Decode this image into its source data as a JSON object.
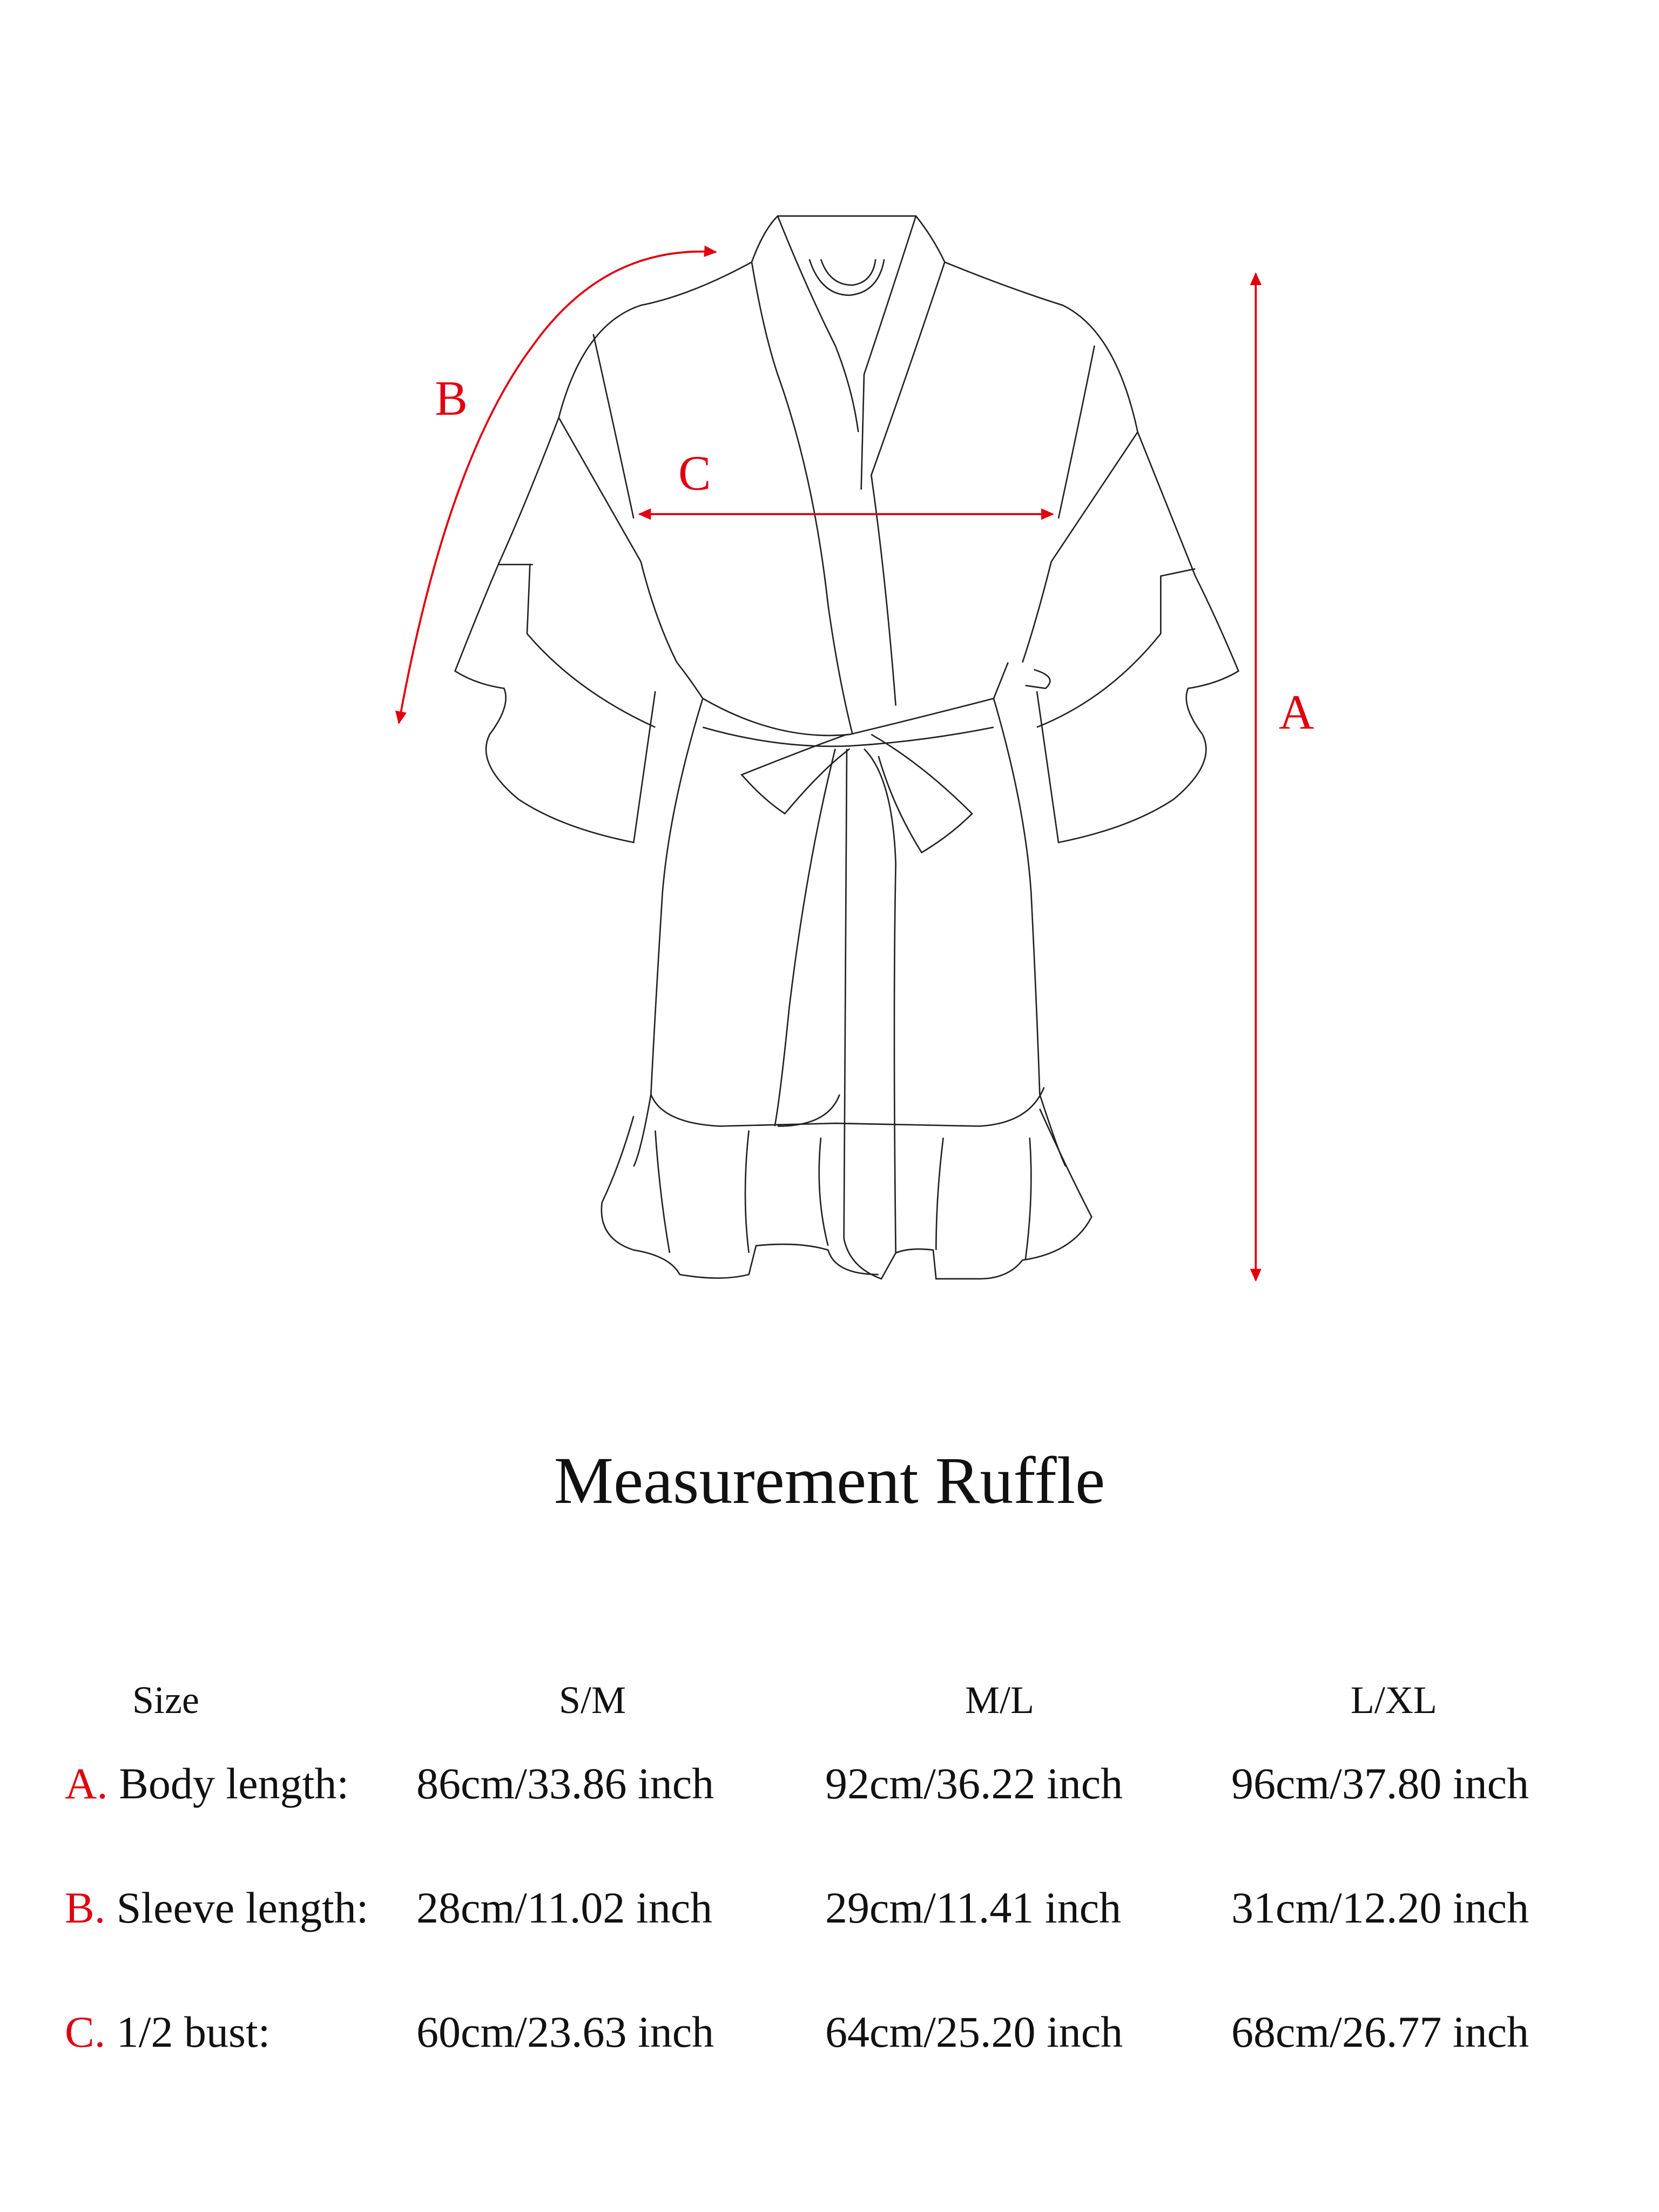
{
  "figure": {
    "markers": {
      "a": "A",
      "b": "B",
      "c": "C"
    },
    "accent_color": "#e0000f"
  },
  "title": "Measurement Ruffle",
  "table": {
    "headers": [
      "Size",
      "S/M",
      "M/L",
      "L/XL"
    ],
    "rows": [
      {
        "letter": "A.",
        "label": "Body length:",
        "values": [
          "86cm/33.86 inch",
          "92cm/36.22 inch",
          "96cm/37.80 inch"
        ]
      },
      {
        "letter": "B.",
        "label": "Sleeve length:",
        "values": [
          "28cm/11.02 inch",
          "29cm/11.41 inch",
          "31cm/12.20 inch"
        ]
      },
      {
        "letter": "C.",
        "label": "1/2 bust:",
        "values": [
          "60cm/23.63 inch",
          "64cm/25.20 inch",
          "68cm/26.77 inch"
        ]
      }
    ]
  }
}
